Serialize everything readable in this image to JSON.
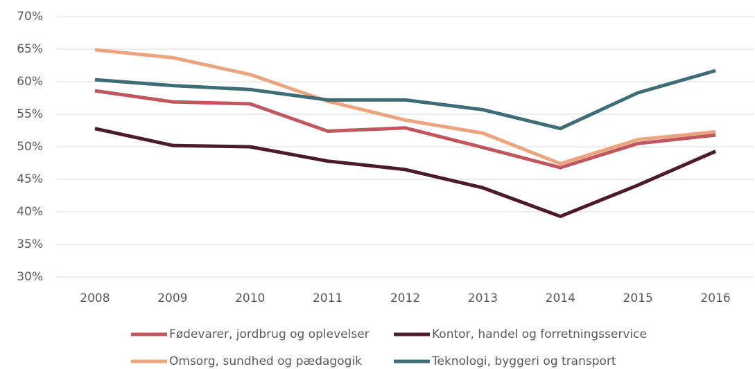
{
  "chart_data": {
    "type": "line",
    "categories": [
      "2008",
      "2009",
      "2010",
      "2011",
      "2012",
      "2013",
      "2014",
      "2015",
      "2016"
    ],
    "series": [
      {
        "name": "Fødevarer, jordbrug og oplevelser",
        "color": "#c0565e",
        "values": [
          58.6,
          56.9,
          56.6,
          52.4,
          52.9,
          49.9,
          46.8,
          50.5,
          51.8
        ]
      },
      {
        "name": "Kontor, handel og forretningsservice",
        "color": "#4b1b2b",
        "values": [
          52.8,
          50.2,
          50.0,
          47.8,
          46.5,
          43.7,
          39.3,
          44.1,
          49.3
        ]
      },
      {
        "name": "Omsorg, sundhed og pædagogik",
        "color": "#eba57e",
        "values": [
          64.9,
          63.7,
          61.1,
          57.0,
          54.1,
          52.1,
          47.4,
          51.1,
          52.3
        ]
      },
      {
        "name": "Teknologi, byggeri og transport",
        "color": "#3e6e75",
        "values": [
          60.3,
          59.4,
          58.8,
          57.2,
          57.2,
          55.7,
          52.8,
          58.3,
          61.7
        ]
      }
    ],
    "ylim": [
      30,
      70
    ],
    "yticks": [
      {
        "value": 30,
        "label": "30%"
      },
      {
        "value": 35,
        "label": "35%"
      },
      {
        "value": 40,
        "label": "40%"
      },
      {
        "value": 45,
        "label": "45%"
      },
      {
        "value": 50,
        "label": "50%"
      },
      {
        "value": 55,
        "label": "55%"
      },
      {
        "value": 60,
        "label": "60%"
      },
      {
        "value": 65,
        "label": "65%"
      },
      {
        "value": 70,
        "label": "70%"
      }
    ],
    "grid": true,
    "legend": "bottom"
  }
}
